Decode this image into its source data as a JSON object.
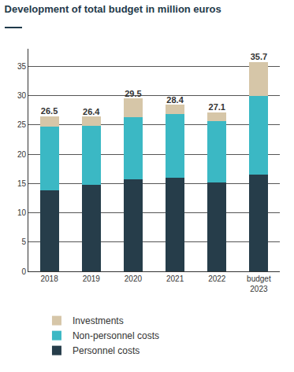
{
  "chart_data": {
    "type": "bar",
    "stacked": true,
    "title": "Development of total budget in million euros",
    "categories": [
      "2018",
      "2019",
      "2020",
      "2021",
      "2022",
      "budget 2023"
    ],
    "series": [
      {
        "name": "Personnel costs",
        "color": "#263d4a",
        "values": [
          13.8,
          14.8,
          15.7,
          16.0,
          15.2,
          16.5
        ]
      },
      {
        "name": "Non-personnel costs",
        "color": "#3bb8c4",
        "values": [
          10.9,
          10.1,
          10.6,
          10.8,
          10.5,
          13.4
        ]
      },
      {
        "name": "Investments",
        "color": "#d6c6a8",
        "values": [
          1.8,
          1.5,
          3.2,
          1.6,
          1.4,
          5.8
        ]
      }
    ],
    "totals": [
      26.5,
      26.4,
      29.5,
      28.4,
      27.1,
      35.7
    ],
    "ylim": [
      0,
      38
    ],
    "yticks": [
      0,
      5,
      10,
      15,
      20,
      25,
      30,
      35
    ],
    "grid": true,
    "legend": "bottom"
  }
}
